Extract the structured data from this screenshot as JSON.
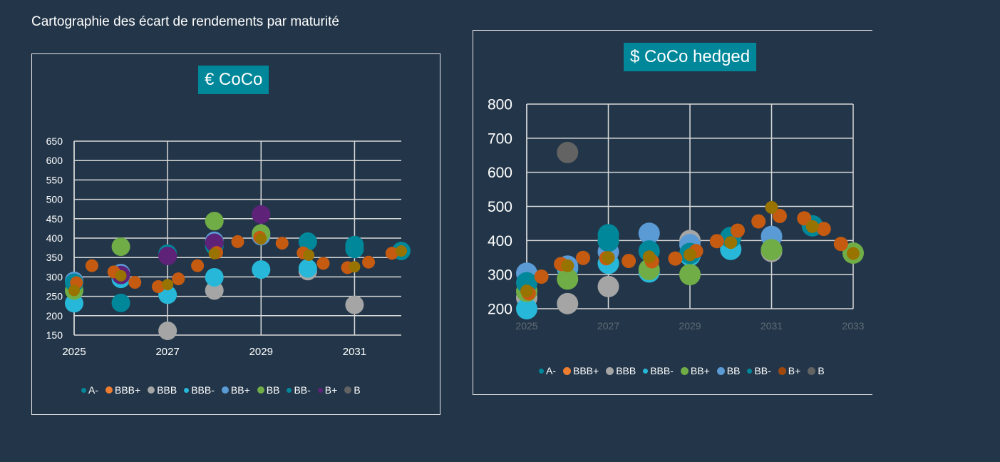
{
  "page_title": "Cartographie des écart de rendements par maturité",
  "chart_data": [
    {
      "type": "scatter",
      "title": "€ CoCo",
      "xlim": [
        2025,
        2032
      ],
      "ylim": [
        150,
        650
      ],
      "xticks": [
        2025,
        2027,
        2029,
        2031
      ],
      "yticks": [
        150,
        200,
        250,
        300,
        350,
        400,
        450,
        500,
        550,
        600,
        650
      ],
      "grid": true,
      "legend_position": "bottom",
      "legend": [
        {
          "name": "A-",
          "color": "#00879a"
        },
        {
          "name": "BBB+",
          "color": "#ed7d31"
        },
        {
          "name": "BBB",
          "color": "#a5a5a5"
        },
        {
          "name": "BBB-",
          "color": "#27b8d9"
        },
        {
          "name": "BB+",
          "color": "#5b9bd5"
        },
        {
          "name": "BB",
          "color": "#70ad47"
        },
        {
          "name": "BB-",
          "color": "#00879a"
        },
        {
          "name": "B+",
          "color": "#5e2378"
        },
        {
          "name": "B",
          "color": "#636363"
        }
      ],
      "series": [
        {
          "name": "BBB",
          "color": "#a5a5a5",
          "size": "large",
          "points": [
            [
              2027,
              161
            ],
            [
              2028,
              265
            ],
            [
              2030,
              315
            ],
            [
              2031,
              228
            ]
          ]
        },
        {
          "name": "BBB-",
          "color": "#27b8d9",
          "size": "large",
          "points": [
            [
              2025,
              232
            ],
            [
              2026,
              295
            ],
            [
              2027,
              254
            ],
            [
              2028,
              299
            ],
            [
              2029,
              319
            ],
            [
              2030,
              322
            ]
          ]
        },
        {
          "name": "BB+",
          "color": "#5b9bd5",
          "size": "large",
          "points": [
            [
              2025,
              290
            ],
            [
              2026,
              310
            ],
            [
              2028,
              393
            ],
            [
              2029,
              405
            ]
          ]
        },
        {
          "name": "BB",
          "color": "#70ad47",
          "size": "large",
          "points": [
            [
              2025,
              265
            ],
            [
              2026,
              378
            ],
            [
              2028,
              444
            ],
            [
              2029,
              412
            ]
          ]
        },
        {
          "name": "A-",
          "color": "#00879a",
          "size": "large",
          "points": [
            [
              2025,
              285
            ],
            [
              2026,
              233
            ],
            [
              2027,
              360
            ],
            [
              2028,
              380
            ],
            [
              2030,
              391
            ],
            [
              2031,
              382
            ],
            [
              2032,
              367
            ]
          ]
        },
        {
          "name": "BB-",
          "color": "#00879a",
          "size": "large",
          "points": [
            [
              2031,
              372
            ]
          ]
        },
        {
          "name": "B+",
          "color": "#5e2378",
          "size": "large",
          "points": [
            [
              2026,
              305
            ],
            [
              2027,
              354
            ],
            [
              2028,
              388
            ],
            [
              2029,
              461
            ]
          ]
        },
        {
          "color": "#c55a11",
          "size": "small",
          "points": [
            [
              2025.05,
              285
            ],
            [
              2025.38,
              329
            ],
            [
              2025.85,
              313
            ],
            [
              2026.3,
              286
            ],
            [
              2026.8,
              275
            ],
            [
              2027.23,
              295
            ],
            [
              2027.64,
              329
            ],
            [
              2028.05,
              363
            ],
            [
              2028.5,
              391
            ],
            [
              2028.97,
              402
            ],
            [
              2029.45,
              387
            ],
            [
              2029.9,
              362
            ],
            [
              2030.33,
              335
            ],
            [
              2030.85,
              324
            ],
            [
              2031.3,
              338
            ],
            [
              2031.8,
              361
            ]
          ]
        },
        {
          "color": "#997300",
          "size": "medium",
          "points": [
            [
              2025,
              265
            ],
            [
              2026,
              303
            ],
            [
              2027,
              280
            ],
            [
              2028,
              360
            ],
            [
              2029,
              398
            ],
            [
              2030.02,
              356
            ],
            [
              2031,
              326
            ],
            [
              2032,
              367
            ]
          ]
        }
      ]
    },
    {
      "type": "scatter",
      "title": "$ CoCo hedged",
      "xlim": [
        2025,
        2033
      ],
      "ylim": [
        200,
        800
      ],
      "xticks": [
        2025,
        2027,
        2029,
        2031,
        2033
      ],
      "yticks": [
        200,
        300,
        400,
        500,
        600,
        700,
        800
      ],
      "grid": true,
      "legend_position": "bottom",
      "legend": [
        {
          "name": "A-",
          "color": "#00879a"
        },
        {
          "name": "BBB+",
          "color": "#ed7d31"
        },
        {
          "name": "BBB",
          "color": "#a5a5a5"
        },
        {
          "name": "BBB-",
          "color": "#27b8d9"
        },
        {
          "name": "BB+",
          "color": "#70ad47"
        },
        {
          "name": "BB",
          "color": "#5b9bd5"
        },
        {
          "name": "BB-",
          "color": "#00879a"
        },
        {
          "name": "B+",
          "color": "#9e480e"
        },
        {
          "name": "B",
          "color": "#636363"
        }
      ],
      "series": [
        {
          "name": "B",
          "color": "#636363",
          "size": "large",
          "points": [
            [
              2026,
              658
            ]
          ]
        },
        {
          "name": "BBB",
          "color": "#a5a5a5",
          "size": "large",
          "points": [
            [
              2025,
              232
            ],
            [
              2026,
              215
            ],
            [
              2027,
              265
            ],
            [
              2029,
              400
            ],
            [
              2031,
              368
            ]
          ]
        },
        {
          "name": "BBB-",
          "color": "#27b8d9",
          "size": "large",
          "points": [
            [
              2025,
              200
            ],
            [
              2026,
              318
            ],
            [
              2027,
              333
            ],
            [
              2028,
              308
            ],
            [
              2029,
              356
            ],
            [
              2030,
              374
            ]
          ]
        },
        {
          "name": "BB",
          "color": "#5b9bd5",
          "size": "large",
          "points": [
            [
              2025,
              304
            ],
            [
              2026,
              325
            ],
            [
              2027,
              367
            ],
            [
              2028,
              421
            ],
            [
              2029,
              388
            ],
            [
              2031,
              412
            ]
          ]
        },
        {
          "name": "BB+",
          "color": "#70ad47",
          "size": "large",
          "points": [
            [
              2025,
              251
            ],
            [
              2026,
              287
            ],
            [
              2027,
              400
            ],
            [
              2028,
              315
            ],
            [
              2029,
              300
            ],
            [
              2031,
              373
            ],
            [
              2033,
              363
            ]
          ]
        },
        {
          "name": "A-",
          "color": "#00879a",
          "size": "large",
          "points": [
            [
              2025,
              276
            ],
            [
              2027,
              417
            ],
            [
              2027,
              398
            ],
            [
              2028,
              369
            ],
            [
              2029,
              362
            ],
            [
              2030,
              409
            ],
            [
              2032,
              443
            ]
          ]
        },
        {
          "color": "#c55a11",
          "size": "small",
          "points": [
            [
              2025.05,
              245
            ],
            [
              2025.36,
              294
            ],
            [
              2025.84,
              331
            ],
            [
              2026.38,
              349
            ],
            [
              2026.95,
              348
            ],
            [
              2027.5,
              340
            ],
            [
              2028.07,
              339
            ],
            [
              2028.64,
              347
            ],
            [
              2029.15,
              369
            ],
            [
              2029.66,
              398
            ],
            [
              2030.17,
              429
            ],
            [
              2030.68,
              456
            ],
            [
              2031.2,
              472
            ],
            [
              2031.8,
              465
            ],
            [
              2032.28,
              434
            ],
            [
              2032.7,
              390
            ]
          ]
        },
        {
          "color": "#997300",
          "size": "medium",
          "points": [
            [
              2025,
              252
            ],
            [
              2026,
              326
            ],
            [
              2027,
              350
            ],
            [
              2028,
              352
            ],
            [
              2029,
              358
            ],
            [
              2030,
              394
            ],
            [
              2031,
              497
            ],
            [
              2032,
              441
            ],
            [
              2033,
              362
            ]
          ]
        }
      ]
    }
  ]
}
